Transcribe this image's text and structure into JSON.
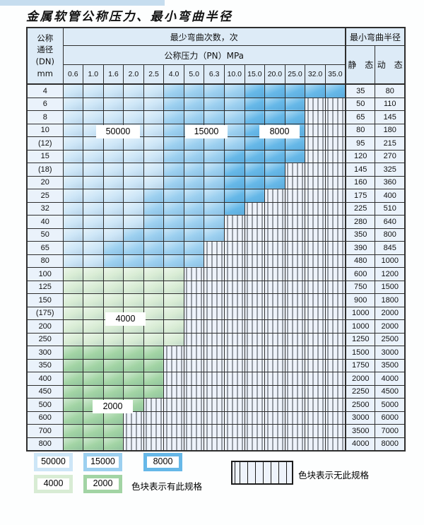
{
  "title": "金属软管公称压力、最小弯曲半径",
  "table": {
    "header": {
      "dn_lines": [
        "公称",
        "通径",
        "(DN)",
        "mm"
      ],
      "min_cycles": "最少弯曲次数，次",
      "min_radius": "最小弯曲半径",
      "pressure_label": "公称压力（PN）MPa",
      "pressures": [
        "0.6",
        "1.0",
        "1.6",
        "2.0",
        "2.5",
        "4.0",
        "5.0",
        "6.3",
        "10.0",
        "15.0",
        "20.0",
        "25.0",
        "32.0",
        "35.0"
      ],
      "static_label": "静　态",
      "dynamic_label": "动　态"
    },
    "rows": [
      {
        "dn": "4",
        "bands": [
          [
            "b1",
            5
          ],
          [
            "b2",
            4
          ],
          [
            "b3",
            5
          ]
        ],
        "static": "35",
        "dynamic": "80"
      },
      {
        "dn": "6",
        "bands": [
          [
            "b1",
            5
          ],
          [
            "b2",
            4
          ],
          [
            "b3",
            3
          ]
        ],
        "static": "50",
        "dynamic": "110"
      },
      {
        "dn": "8",
        "bands": [
          [
            "b1",
            5
          ],
          [
            "b2",
            4
          ],
          [
            "b3",
            3
          ]
        ],
        "static": "65",
        "dynamic": "145"
      },
      {
        "dn": "10",
        "bands": [
          [
            "b1",
            5
          ],
          [
            "b2",
            4
          ],
          [
            "b3",
            3
          ]
        ],
        "static": "80",
        "dynamic": "180"
      },
      {
        "dn": "(12)",
        "bands": [
          [
            "b1",
            5
          ],
          [
            "b2",
            4
          ],
          [
            "b3",
            3
          ]
        ],
        "static": "95",
        "dynamic": "215"
      },
      {
        "dn": "15",
        "bands": [
          [
            "b1",
            5
          ],
          [
            "b2",
            3
          ],
          [
            "b3",
            4
          ]
        ],
        "static": "120",
        "dynamic": "270"
      },
      {
        "dn": "(18)",
        "bands": [
          [
            "b1",
            5
          ],
          [
            "b2",
            3
          ],
          [
            "b3",
            3
          ]
        ],
        "static": "145",
        "dynamic": "325"
      },
      {
        "dn": "20",
        "bands": [
          [
            "b1",
            5
          ],
          [
            "b2",
            3
          ],
          [
            "b3",
            3
          ]
        ],
        "static": "160",
        "dynamic": "360"
      },
      {
        "dn": "25",
        "bands": [
          [
            "b1",
            4
          ],
          [
            "b2",
            4
          ],
          [
            "b3",
            2
          ]
        ],
        "static": "175",
        "dynamic": "400"
      },
      {
        "dn": "32",
        "bands": [
          [
            "b1",
            4
          ],
          [
            "b2",
            4
          ],
          [
            "b3",
            1
          ]
        ],
        "static": "225",
        "dynamic": "510"
      },
      {
        "dn": "40",
        "bands": [
          [
            "b1",
            4
          ],
          [
            "b2",
            4
          ]
        ],
        "static": "280",
        "dynamic": "640"
      },
      {
        "dn": "50",
        "bands": [
          [
            "b1",
            3
          ],
          [
            "b2",
            5
          ]
        ],
        "static": "350",
        "dynamic": "800"
      },
      {
        "dn": "65",
        "bands": [
          [
            "b1",
            2
          ],
          [
            "b2",
            5
          ]
        ],
        "static": "390",
        "dynamic": "845"
      },
      {
        "dn": "80",
        "bands": [
          [
            "b1",
            2
          ],
          [
            "b2",
            5
          ]
        ],
        "static": "480",
        "dynamic": "1000"
      },
      {
        "dn": "100",
        "bands": [
          [
            "g1",
            6
          ]
        ],
        "static": "600",
        "dynamic": "1200"
      },
      {
        "dn": "125",
        "bands": [
          [
            "g1",
            6
          ]
        ],
        "static": "750",
        "dynamic": "1500"
      },
      {
        "dn": "150",
        "bands": [
          [
            "g1",
            6
          ]
        ],
        "static": "900",
        "dynamic": "1800"
      },
      {
        "dn": "(175)",
        "bands": [
          [
            "g1",
            6
          ]
        ],
        "static": "1000",
        "dynamic": "2000"
      },
      {
        "dn": "200",
        "bands": [
          [
            "g1",
            6
          ]
        ],
        "static": "1000",
        "dynamic": "2000"
      },
      {
        "dn": "250",
        "bands": [
          [
            "g1",
            6
          ]
        ],
        "static": "1250",
        "dynamic": "2500"
      },
      {
        "dn": "300",
        "bands": [
          [
            "g2",
            5
          ]
        ],
        "static": "1500",
        "dynamic": "3000"
      },
      {
        "dn": "350",
        "bands": [
          [
            "g2",
            5
          ]
        ],
        "static": "1750",
        "dynamic": "3500"
      },
      {
        "dn": "400",
        "bands": [
          [
            "g2",
            5
          ]
        ],
        "static": "2000",
        "dynamic": "4000"
      },
      {
        "dn": "450",
        "bands": [
          [
            "g2",
            5
          ]
        ],
        "static": "2250",
        "dynamic": "4500"
      },
      {
        "dn": "500",
        "bands": [
          [
            "g2",
            4
          ]
        ],
        "static": "2500",
        "dynamic": "5000"
      },
      {
        "dn": "600",
        "bands": [
          [
            "g2",
            3
          ]
        ],
        "static": "3000",
        "dynamic": "6000"
      },
      {
        "dn": "700",
        "bands": [
          [
            "g2",
            3
          ]
        ],
        "static": "3500",
        "dynamic": "7000"
      },
      {
        "dn": "800",
        "bands": [
          [
            "g2",
            3
          ]
        ],
        "static": "4000",
        "dynamic": "8000"
      }
    ]
  },
  "zone_labels": {
    "z50000": "50000",
    "z15000": "15000",
    "z8000": "8000",
    "z4000": "4000",
    "z2000": "2000"
  },
  "legend": {
    "swatches": {
      "s50000": "50000",
      "s15000": "15000",
      "s8000": "8000",
      "s4000": "4000",
      "s2000": "2000"
    },
    "has_spec_text": "色块表示有此规格",
    "no_spec_text": "色块表示无此规格"
  },
  "colors": {
    "zone_50000": "#cde6f7",
    "zone_15000": "#9cd0f0",
    "zone_8000": "#66b8e8",
    "zone_4000": "#d8ecd4",
    "zone_2000": "#a2d4a4",
    "stripe_bg": "#eef3fb",
    "grid": "#2e2e2e",
    "header_bg": "#ddebf7",
    "label_bg": "#eaf2fb",
    "accent_bar": "#c6ddef"
  }
}
